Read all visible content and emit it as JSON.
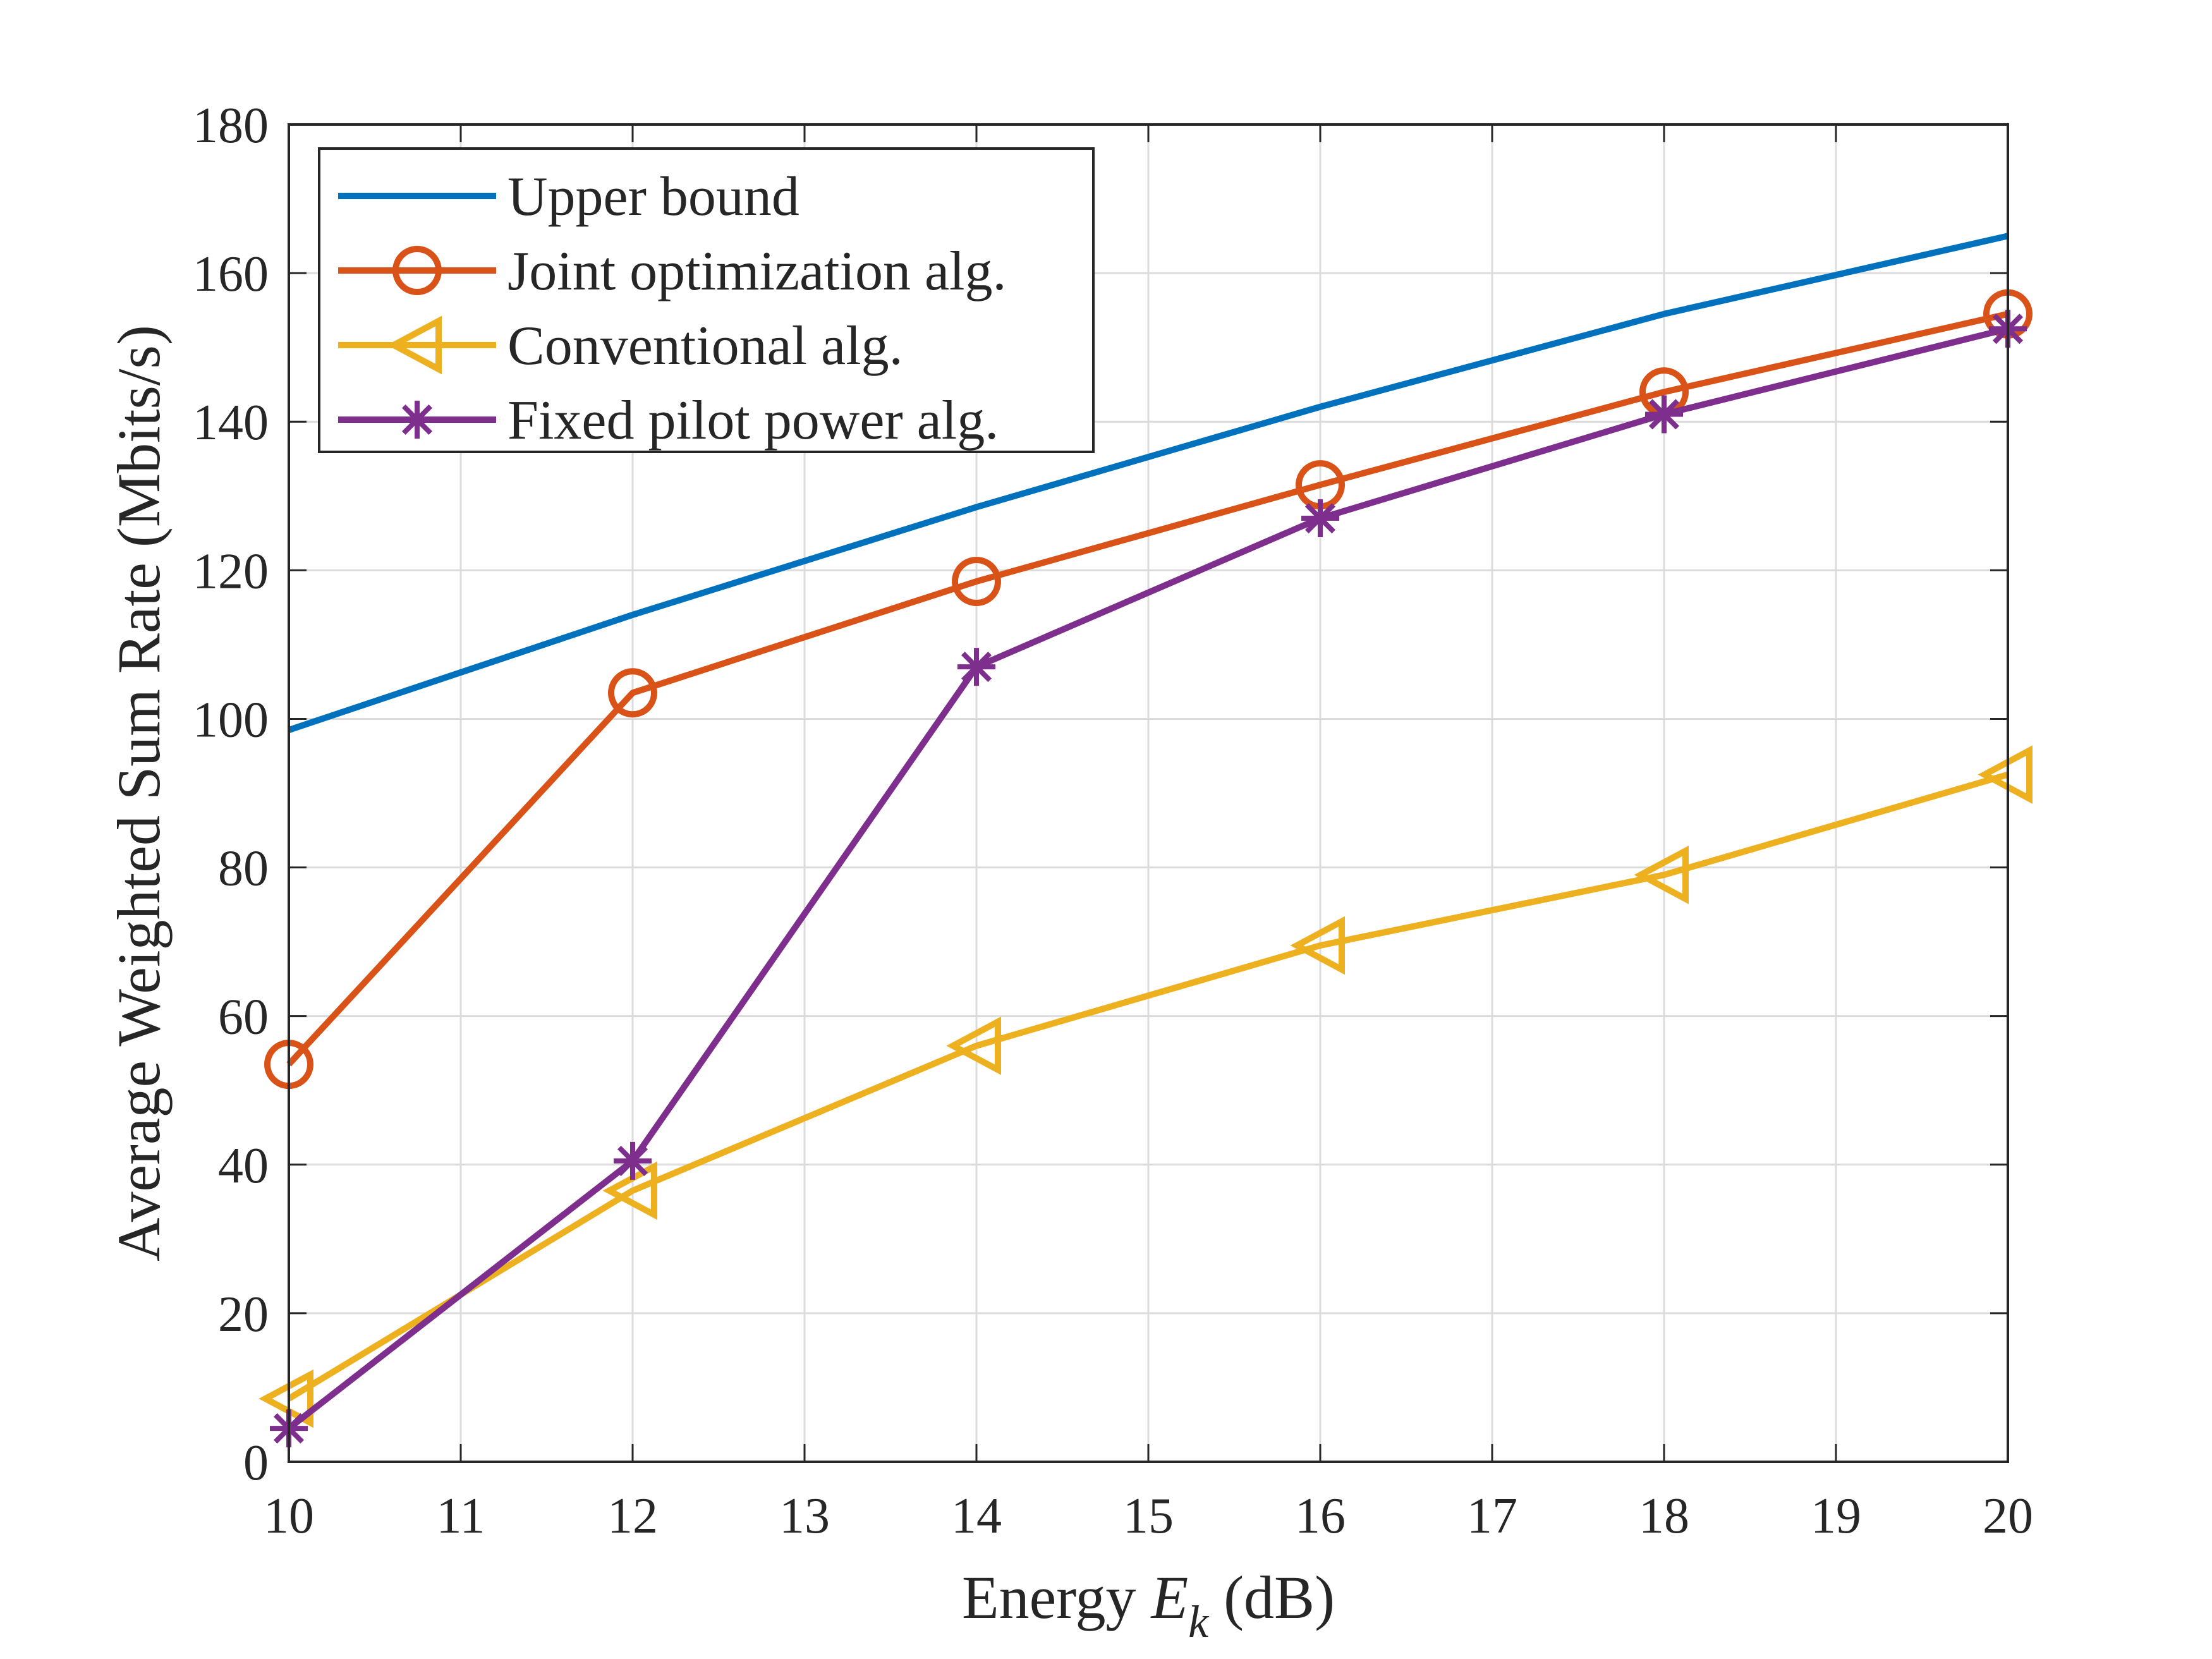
{
  "chart_data": {
    "type": "line",
    "xlabel": {
      "prefix": "Energy ",
      "symbol": "E",
      "subscript": "k",
      "suffix": " (dB)"
    },
    "ylabel": "Average Weighted Sum Rate (Mbits/s)",
    "xlim": [
      10,
      20
    ],
    "ylim": [
      0,
      180
    ],
    "xticks": [
      "10",
      "11",
      "12",
      "13",
      "14",
      "15",
      "16",
      "17",
      "18",
      "19",
      "20"
    ],
    "yticks": [
      "0",
      "20",
      "40",
      "60",
      "80",
      "100",
      "120",
      "140",
      "160",
      "180"
    ],
    "grid": true,
    "legend_position": "top-left",
    "series": [
      {
        "name": "Upper bound",
        "color": "#0072BD",
        "marker": "none",
        "x": [
          10,
          12,
          14,
          16,
          18,
          20
        ],
        "values": [
          98.5,
          114,
          128.5,
          142,
          154.5,
          165
        ]
      },
      {
        "name": "Joint optimization alg.",
        "color": "#D95319",
        "marker": "circle",
        "x": [
          10,
          12,
          14,
          16,
          18,
          20
        ],
        "values": [
          53.5,
          103.5,
          118.5,
          131.5,
          144,
          154.5
        ]
      },
      {
        "name": "Conventional alg.",
        "color": "#EDB120",
        "marker": "triangle-left",
        "x": [
          10,
          12,
          14,
          16,
          18,
          20
        ],
        "values": [
          8.5,
          36.5,
          56,
          69.5,
          79,
          92.5
        ]
      },
      {
        "name": "Fixed pilot power alg.",
        "color": "#7E2F8E",
        "marker": "asterisk",
        "x": [
          10,
          12,
          14,
          16,
          18,
          20
        ],
        "values": [
          4.5,
          40.5,
          107,
          127,
          141,
          152.5
        ]
      }
    ]
  }
}
